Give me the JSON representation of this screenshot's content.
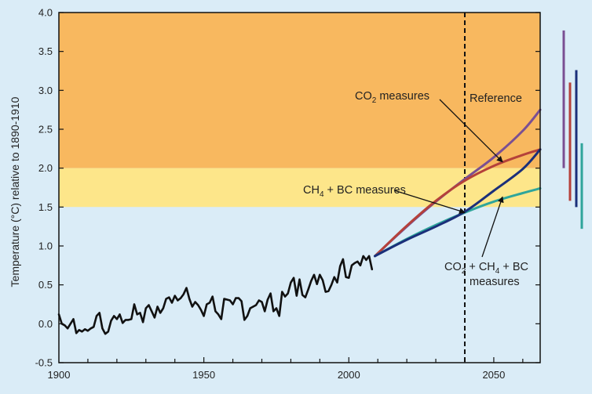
{
  "chart_data": {
    "type": "line",
    "title": "",
    "xlabel": "",
    "ylabel": "Temperature (°C) relative to 1890-1910",
    "xlim": [
      1900,
      2066
    ],
    "ylim": [
      -0.5,
      4.0
    ],
    "x_ticks": [
      "1900",
      "1950",
      "2000",
      "2050"
    ],
    "x_tick_values": [
      1900,
      1950,
      2000,
      2050
    ],
    "y_ticks": [
      "-0.5",
      "0.0",
      "0.5",
      "1.0",
      "1.5",
      "2.0",
      "2.5",
      "3.0",
      "3.5",
      "4.0"
    ],
    "y_tick_values": [
      -0.5,
      0.0,
      0.5,
      1.0,
      1.5,
      2.0,
      2.5,
      3.0,
      3.5,
      4.0
    ],
    "grid": false,
    "zones": [
      {
        "from": 2.0,
        "to": 4.0,
        "color": "#f8b85f"
      },
      {
        "from": 1.5,
        "to": 2.0,
        "color": "#fde68a"
      },
      {
        "from": -0.5,
        "to": 1.5,
        "color": "#daecf7"
      }
    ],
    "vertical_marker": {
      "x": 2040,
      "style": "dashed"
    },
    "annotations": {
      "co2": {
        "main": "CO",
        "sub": "2",
        "rest": " measures"
      },
      "reference": "Reference",
      "ch4": {
        "main": "CH",
        "sub": "4",
        "rest": " + BC measures"
      },
      "combo_line1": {
        "a": "CO",
        "sub1": "2",
        "b": " + CH",
        "sub2": "4",
        "c": " + BC"
      },
      "combo_line2": "measures"
    },
    "series": [
      {
        "key": "observed",
        "color": "#111111",
        "x": [
          1900,
          1901,
          1902,
          1903,
          1904,
          1905,
          1906,
          1907,
          1908,
          1909,
          1910,
          1911,
          1912,
          1913,
          1914,
          1915,
          1916,
          1917,
          1918,
          1919,
          1920,
          1921,
          1922,
          1923,
          1924,
          1925,
          1926,
          1927,
          1928,
          1929,
          1930,
          1931,
          1932,
          1933,
          1934,
          1935,
          1936,
          1937,
          1938,
          1939,
          1940,
          1941,
          1942,
          1943,
          1944,
          1945,
          1946,
          1947,
          1948,
          1949,
          1950,
          1951,
          1952,
          1953,
          1954,
          1955,
          1956,
          1957,
          1958,
          1959,
          1960,
          1961,
          1962,
          1963,
          1964,
          1965,
          1966,
          1967,
          1968,
          1969,
          1970,
          1971,
          1972,
          1973,
          1974,
          1975,
          1976,
          1977,
          1978,
          1979,
          1980,
          1981,
          1982,
          1983,
          1984,
          1985,
          1986,
          1987,
          1988,
          1989,
          1990,
          1991,
          1992,
          1993,
          1994,
          1995,
          1996,
          1997,
          1998,
          1999,
          2000,
          2001,
          2002,
          2003,
          2004,
          2005,
          2006,
          2007,
          2008
        ],
        "y": [
          0.12,
          0.0,
          -0.02,
          -0.06,
          0.0,
          0.06,
          -0.12,
          -0.08,
          -0.1,
          -0.07,
          -0.09,
          -0.06,
          -0.04,
          0.1,
          0.14,
          -0.06,
          -0.13,
          -0.1,
          0.04,
          0.1,
          0.06,
          0.12,
          0.01,
          0.05,
          0.05,
          0.06,
          0.25,
          0.12,
          0.14,
          0.02,
          0.2,
          0.24,
          0.16,
          0.08,
          0.22,
          0.14,
          0.2,
          0.32,
          0.34,
          0.27,
          0.36,
          0.3,
          0.33,
          0.38,
          0.46,
          0.32,
          0.22,
          0.28,
          0.24,
          0.18,
          0.1,
          0.25,
          0.27,
          0.35,
          0.16,
          0.12,
          0.06,
          0.32,
          0.31,
          0.3,
          0.25,
          0.33,
          0.33,
          0.29,
          0.05,
          0.1,
          0.2,
          0.22,
          0.24,
          0.3,
          0.28,
          0.16,
          0.31,
          0.39,
          0.16,
          0.2,
          0.1,
          0.41,
          0.35,
          0.39,
          0.53,
          0.59,
          0.36,
          0.57,
          0.37,
          0.34,
          0.44,
          0.55,
          0.63,
          0.51,
          0.63,
          0.56,
          0.41,
          0.42,
          0.5,
          0.6,
          0.53,
          0.74,
          0.83,
          0.6,
          0.59,
          0.75,
          0.78,
          0.8,
          0.75,
          0.87,
          0.82,
          0.87,
          0.7
        ]
      },
      {
        "key": "reference",
        "color": "#7a4f93",
        "x": [
          2009,
          2020,
          2030,
          2040,
          2050,
          2060,
          2066
        ],
        "y": [
          0.87,
          1.25,
          1.57,
          1.86,
          2.14,
          2.48,
          2.75
        ]
      },
      {
        "key": "co2",
        "color": "#b5413a",
        "x": [
          2009,
          2020,
          2030,
          2040,
          2050,
          2060,
          2066
        ],
        "y": [
          0.87,
          1.26,
          1.58,
          1.84,
          2.03,
          2.17,
          2.24
        ]
      },
      {
        "key": "ch4bc",
        "color": "#2fa59b",
        "x": [
          2009,
          2020,
          2030,
          2040,
          2050,
          2060,
          2066
        ],
        "y": [
          0.87,
          1.09,
          1.27,
          1.43,
          1.57,
          1.68,
          1.74
        ]
      },
      {
        "key": "combined",
        "color": "#1b2f7a",
        "x": [
          2009,
          2020,
          2030,
          2040,
          2050,
          2060,
          2066
        ],
        "y": [
          0.87,
          1.08,
          1.25,
          1.44,
          1.71,
          1.99,
          2.24
        ]
      }
    ],
    "range_bars": [
      {
        "color": "#7a4f93",
        "from": 2.0,
        "to": 3.77
      },
      {
        "color": "#b5413a",
        "from": 1.58,
        "to": 3.1
      },
      {
        "color": "#1b2f7a",
        "from": 1.5,
        "to": 3.26
      },
      {
        "color": "#2fa59b",
        "from": 1.22,
        "to": 2.32
      }
    ]
  }
}
